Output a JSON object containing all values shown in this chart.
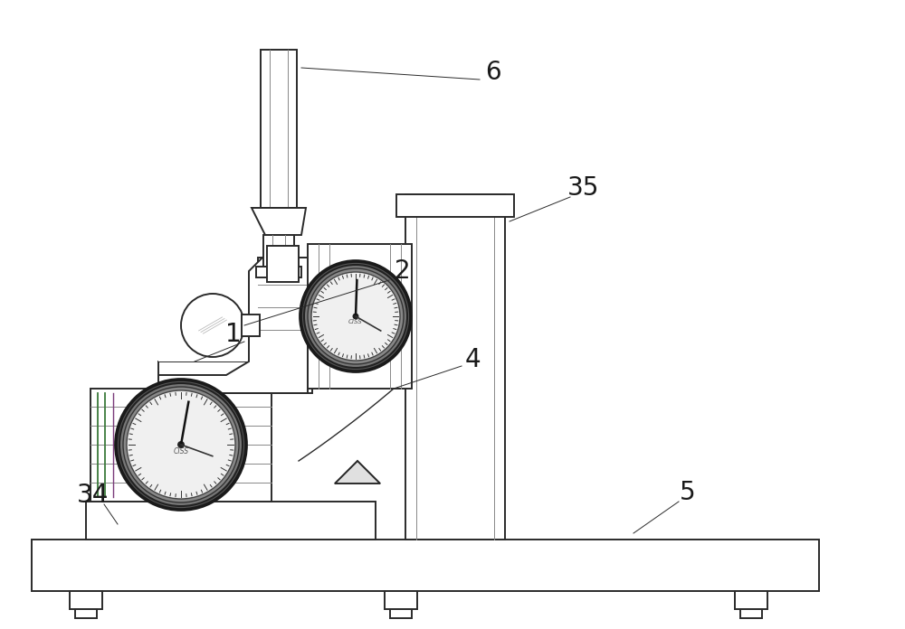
{
  "bg_color": "#ffffff",
  "line_color": "#2a2a2a",
  "line_color_light": "#888888",
  "line_color_green": "#3a7a3a",
  "line_color_purple": "#7a3a7a",
  "line_color_blue": "#3a3a9a",
  "label_6": "6",
  "label_2": "2",
  "label_35": "35",
  "label_1": "1",
  "label_4": "4",
  "label_34": "34",
  "label_5": "5",
  "font_size": 20,
  "label_color": "#1a1a1a",
  "lw_main": 1.4,
  "lw_thin": 0.7,
  "lw_thick": 2.2
}
